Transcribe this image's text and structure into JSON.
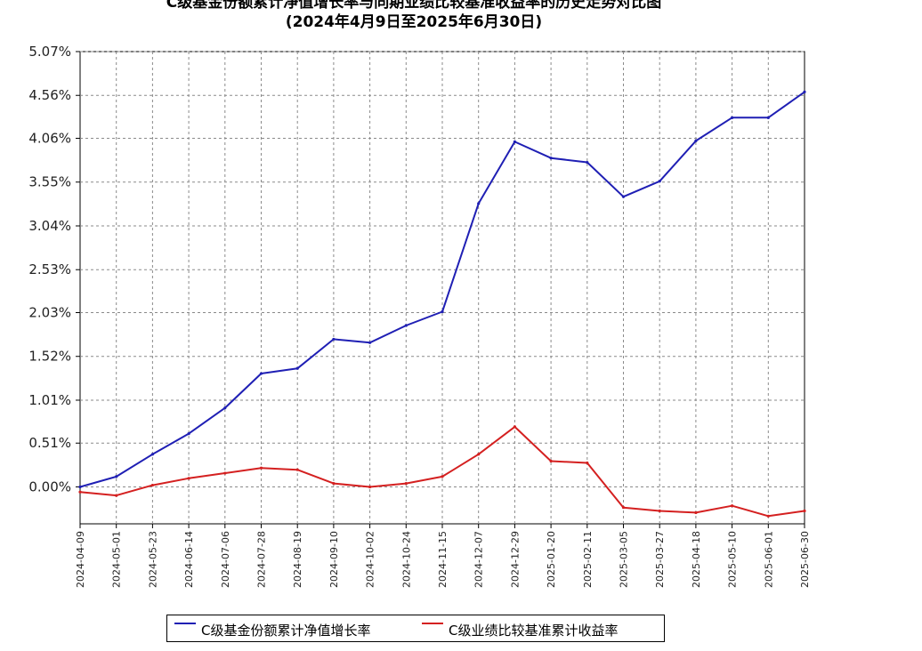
{
  "chart_data": {
    "type": "line",
    "title": "C级基金份额累计净值增长率与同期业绩比较基准收益率的历史走势对比图",
    "subtitle": "(2024年4月9日至2025年6月30日)",
    "y_ticks": [
      "5.07%",
      "4.56%",
      "4.06%",
      "3.55%",
      "3.04%",
      "2.53%",
      "2.03%",
      "1.52%",
      "1.01%",
      "0.51%",
      "0.00%"
    ],
    "ylim": [
      -0.43,
      5.07
    ],
    "grid": true,
    "legend_position": "bottom",
    "x": [
      "2024-04-09",
      "2024-05-01",
      "2024-05-23",
      "2024-06-14",
      "2024-07-06",
      "2024-07-28",
      "2024-08-19",
      "2024-09-10",
      "2024-10-02",
      "2024-10-24",
      "2024-11-15",
      "2024-12-07",
      "2024-12-29",
      "2025-01-20",
      "2025-02-11",
      "2025-03-05",
      "2025-03-27",
      "2025-04-18",
      "2025-05-10",
      "2025-06-01",
      "2025-06-30"
    ],
    "series": [
      {
        "name": "C级基金份额累计净值增长率",
        "color": "#1f1fb4",
        "values": [
          0.0,
          0.12,
          0.38,
          0.62,
          0.92,
          1.32,
          1.38,
          1.72,
          1.68,
          1.88,
          2.04,
          3.3,
          4.02,
          3.83,
          3.78,
          3.38,
          3.56,
          4.03,
          4.3,
          4.3,
          4.6
        ]
      },
      {
        "name": "C级业绩比较基准累计收益率",
        "color": "#d42020",
        "values": [
          -0.06,
          -0.1,
          0.02,
          0.1,
          0.16,
          0.22,
          0.2,
          0.04,
          0.0,
          0.04,
          0.12,
          0.38,
          0.7,
          0.3,
          0.28,
          -0.24,
          -0.28,
          -0.3,
          -0.22,
          -0.34,
          -0.28
        ]
      }
    ]
  }
}
